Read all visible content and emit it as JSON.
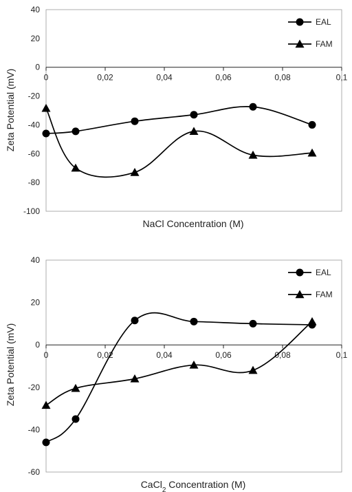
{
  "chart_data": [
    {
      "type": "line",
      "xlabel": "NaCl Concentration (M)",
      "ylabel": "Zeta Potential (mV)",
      "xlim": [
        0,
        0.1
      ],
      "ylim": [
        -100,
        40
      ],
      "x_ticks": [
        "0",
        "0,02",
        "0,04",
        "0,06",
        "0,08",
        "0,1"
      ],
      "y_ticks": [
        "40",
        "20",
        "0",
        "-20",
        "-40",
        "-60",
        "-80",
        "-100"
      ],
      "legend_position": "top-right",
      "series": [
        {
          "name": "EAL",
          "marker": "circle",
          "x": [
            0,
            0.01,
            0.03,
            0.05,
            0.07,
            0.09
          ],
          "y": [
            -46,
            -44.5,
            -37.5,
            -33,
            -27.5,
            -40
          ]
        },
        {
          "name": "FAM",
          "marker": "triangle",
          "x": [
            0,
            0.01,
            0.03,
            0.05,
            0.07,
            0.09
          ],
          "y": [
            -28.5,
            -70,
            -73,
            -44.5,
            -61,
            -59.5
          ]
        }
      ]
    },
    {
      "type": "line",
      "xlabel_main": "CaCl",
      "xlabel_sub": "2",
      "xlabel_rest": " Concentration (M)",
      "ylabel": "Zeta Potential (mV)",
      "xlim": [
        0,
        0.1
      ],
      "ylim": [
        -60,
        40
      ],
      "x_ticks": [
        "0",
        "0,02",
        "0,04",
        "0,06",
        "0,08",
        "0,1"
      ],
      "y_ticks": [
        "40",
        "20",
        "0",
        "-20",
        "-40",
        "-60"
      ],
      "legend_position": "top-right",
      "series": [
        {
          "name": "EAL",
          "marker": "circle",
          "x": [
            0,
            0.01,
            0.03,
            0.05,
            0.07,
            0.09
          ],
          "y": [
            -46,
            -35,
            11.5,
            11,
            10,
            9.5
          ]
        },
        {
          "name": "FAM",
          "marker": "triangle",
          "x": [
            0,
            0.01,
            0.03,
            0.05,
            0.07,
            0.09
          ],
          "y": [
            -28.5,
            -20.5,
            -16,
            -9.5,
            -12,
            11
          ]
        }
      ]
    }
  ]
}
